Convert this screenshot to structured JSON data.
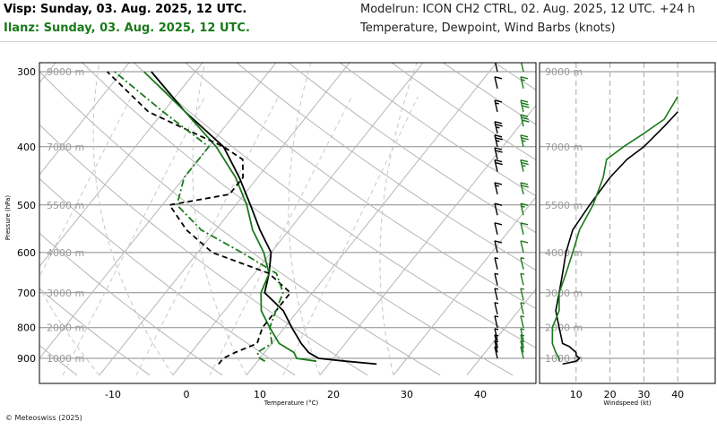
{
  "header": {
    "location_black": "Visp: Sunday, 03. Aug. 2025, 12 UTC.",
    "location_green": "Ilanz: Sunday, 03. Aug. 2025, 12 UTC.",
    "model_run": "Modelrun: ICON CH2 CTRL, 02. Aug. 2025, 12 UTC. +24 h",
    "description": "Temperature, Dewpoint, Wind Barbs (knots)"
  },
  "footer": {
    "copyright": "© Meteoswiss (2025)"
  },
  "colors": {
    "visp": "#000000",
    "ilanz": "#1a7a1a",
    "grid": "#b5b5b5"
  },
  "chart_data": [
    {
      "type": "line",
      "chart_kind": "skew-T log-P diagram",
      "xlabel": "Temperature (°C)",
      "ylabel": "Pressure (hPa)",
      "x_ticks": [
        -10,
        0,
        10,
        20,
        30,
        40
      ],
      "y_ticks": [
        300,
        400,
        500,
        600,
        700,
        800,
        900
      ],
      "height_labels": [
        "9000 m",
        "7000 m",
        "5500 m",
        "4000 m",
        "3000 m",
        "2000 m",
        "1000 m"
      ],
      "series": [
        {
          "kind": "temperature",
          "station": "Visp",
          "color": "#000000",
          "dash": "solid",
          "points": [
            [
              920,
              26.5
            ],
            [
              910,
              22
            ],
            [
              900,
              18
            ],
            [
              880,
              16
            ],
            [
              850,
              14
            ],
            [
              800,
              11
            ],
            [
              750,
              8
            ],
            [
              700,
              3.5
            ],
            [
              650,
              2
            ],
            [
              600,
              0
            ],
            [
              550,
              -4
            ],
            [
              500,
              -8
            ],
            [
              450,
              -12.5
            ],
            [
              400,
              -18
            ],
            [
              350,
              -27
            ],
            [
              300,
              -36
            ]
          ]
        },
        {
          "kind": "temperature",
          "station": "Ilanz",
          "color": "#1a7a1a",
          "dash": "solid",
          "points": [
            [
              910,
              18
            ],
            [
              900,
              15
            ],
            [
              890,
              14.5
            ],
            [
              880,
              14
            ],
            [
              850,
              11
            ],
            [
              800,
              8
            ],
            [
              750,
              5
            ],
            [
              700,
              3
            ],
            [
              650,
              2
            ],
            [
              600,
              -1
            ],
            [
              550,
              -5
            ],
            [
              500,
              -8.5
            ],
            [
              450,
              -13
            ],
            [
              400,
              -19
            ],
            [
              350,
              -27
            ],
            [
              300,
              -37
            ]
          ]
        },
        {
          "kind": "dewpoint",
          "station": "Visp",
          "color": "#000000",
          "dash": "dashed",
          "points": [
            [
              920,
              5
            ],
            [
              900,
              5
            ],
            [
              880,
              6
            ],
            [
              850,
              8
            ],
            [
              800,
              7
            ],
            [
              750,
              7
            ],
            [
              700,
              7
            ],
            [
              650,
              2
            ],
            [
              600,
              -8
            ],
            [
              550,
              -14
            ],
            [
              500,
              -19
            ],
            [
              480,
              -12
            ],
            [
              450,
              -12
            ],
            [
              420,
              -14
            ],
            [
              400,
              -18
            ],
            [
              350,
              -32
            ],
            [
              300,
              -42
            ]
          ]
        },
        {
          "kind": "dewpoint",
          "station": "Ilanz",
          "color": "#1a7a1a",
          "dash": "dash-dot",
          "points": [
            [
              910,
              11
            ],
            [
              900,
              10
            ],
            [
              880,
              9
            ],
            [
              850,
              10
            ],
            [
              800,
              8
            ],
            [
              750,
              7
            ],
            [
              700,
              6
            ],
            [
              650,
              3
            ],
            [
              600,
              -4
            ],
            [
              550,
              -12
            ],
            [
              500,
              -18
            ],
            [
              450,
              -20
            ],
            [
              400,
              -20
            ],
            [
              350,
              -30
            ],
            [
              300,
              -41
            ]
          ]
        }
      ],
      "wind_barbs": [
        {
          "station": "Visp",
          "color": "#000000",
          "barbs": [
            [
              900,
              5
            ],
            [
              880,
              5
            ],
            [
              860,
              5
            ],
            [
              840,
              5
            ],
            [
              800,
              5
            ],
            [
              760,
              5
            ],
            [
              720,
              5
            ],
            [
              680,
              5
            ],
            [
              640,
              5
            ],
            [
              600,
              10
            ],
            [
              560,
              10
            ],
            [
              520,
              10
            ],
            [
              480,
              15
            ],
            [
              440,
              20
            ],
            [
              420,
              20
            ],
            [
              400,
              25
            ],
            [
              380,
              25
            ],
            [
              350,
              15
            ],
            [
              320,
              10
            ],
            [
              300,
              10
            ]
          ]
        },
        {
          "station": "Ilanz",
          "color": "#1a7a1a",
          "barbs": [
            [
              900,
              5
            ],
            [
              880,
              5
            ],
            [
              860,
              5
            ],
            [
              840,
              5
            ],
            [
              800,
              5
            ],
            [
              760,
              5
            ],
            [
              720,
              5
            ],
            [
              680,
              5
            ],
            [
              640,
              5
            ],
            [
              600,
              10
            ],
            [
              560,
              10
            ],
            [
              520,
              15
            ],
            [
              480,
              20
            ],
            [
              440,
              25
            ],
            [
              400,
              25
            ],
            [
              370,
              30
            ],
            [
              350,
              30
            ],
            [
              320,
              15
            ],
            [
              300,
              10
            ]
          ]
        }
      ]
    },
    {
      "type": "line",
      "chart_kind": "wind speed profile",
      "xlabel": "Windspeed (kt)",
      "x_ticks": [
        10,
        20,
        30,
        40
      ],
      "height_labels": [
        "9000 m",
        "7000 m",
        "5500 m",
        "4000 m",
        "3000 m",
        "2000 m",
        "1000 m"
      ],
      "series": [
        {
          "station": "Visp",
          "color": "#000000",
          "points": [
            [
              920,
              6
            ],
            [
              910,
              10
            ],
            [
              900,
              11
            ],
            [
              890,
              10
            ],
            [
              880,
              10
            ],
            [
              860,
              8
            ],
            [
              850,
              6
            ],
            [
              800,
              5
            ],
            [
              750,
              4
            ],
            [
              700,
              5
            ],
            [
              650,
              6
            ],
            [
              600,
              7
            ],
            [
              550,
              9
            ],
            [
              500,
              14
            ],
            [
              450,
              20
            ],
            [
              420,
              25
            ],
            [
              400,
              30
            ],
            [
              370,
              36
            ],
            [
              350,
              40
            ]
          ]
        },
        {
          "station": "Ilanz",
          "color": "#1a7a1a",
          "points": [
            [
              910,
              5
            ],
            [
              900,
              5
            ],
            [
              880,
              4
            ],
            [
              850,
              3
            ],
            [
              800,
              3
            ],
            [
              750,
              5
            ],
            [
              700,
              5
            ],
            [
              650,
              7
            ],
            [
              600,
              9
            ],
            [
              550,
              11
            ],
            [
              500,
              15
            ],
            [
              450,
              18
            ],
            [
              420,
              19
            ],
            [
              400,
              24
            ],
            [
              380,
              30
            ],
            [
              360,
              36
            ],
            [
              330,
              40
            ]
          ]
        }
      ]
    }
  ]
}
